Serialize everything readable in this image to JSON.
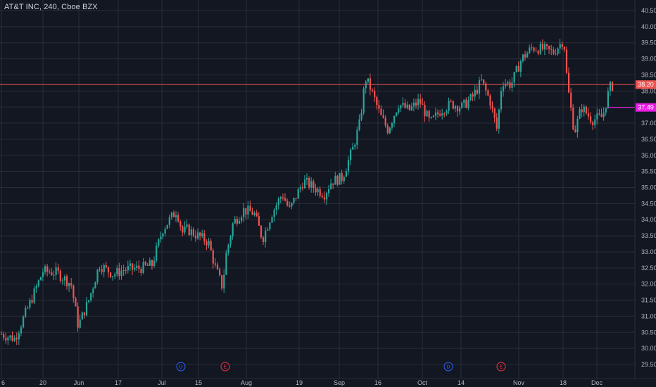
{
  "header": {
    "title": "AT&T INC, 240, Cboe BZX"
  },
  "colors": {
    "background": "#131722",
    "grid": "#2a2e39",
    "up": "#26a69a",
    "down": "#ef5350",
    "last_price_line": "#ef5350",
    "marker_price_line": "#e91ee3",
    "dividend": "#2962ff",
    "earnings": "#f23645"
  },
  "chart_data": {
    "type": "candlestick",
    "title": "AT&T INC, 240, Cboe BZX",
    "y_axis": {
      "min": 29.5,
      "max": 40.5,
      "ticks": [
        "29.50",
        "30.00",
        "30.50",
        "31.00",
        "31.50",
        "32.00",
        "32.50",
        "33.00",
        "33.50",
        "34.00",
        "34.50",
        "35.00",
        "35.50",
        "36.00",
        "36.50",
        "37.00",
        "37.50",
        "38.00",
        "38.50",
        "39.00",
        "39.50",
        "40.00",
        "40.50"
      ]
    },
    "x_axis": {
      "labels": [
        "6",
        "20",
        "Jun",
        "17",
        "Jul",
        "15",
        "Aug",
        "19",
        "Sep",
        "16",
        "Oct",
        "14",
        "Nov",
        "18",
        "Dec"
      ]
    },
    "price_labels": [
      {
        "value": 38.2,
        "label": "38.20",
        "kind": "last"
      },
      {
        "value": 37.49,
        "label": "37.49",
        "kind": "marker"
      }
    ],
    "events": [
      {
        "type": "dividend",
        "label": "D",
        "date": "Jul 9"
      },
      {
        "type": "earnings",
        "label": "E",
        "date": "Jul 24"
      },
      {
        "type": "dividend",
        "label": "D",
        "date": "Oct 8"
      },
      {
        "type": "earnings",
        "label": "E",
        "date": "Oct 23"
      }
    ],
    "anchors": [
      [
        0,
        30.45
      ],
      [
        20,
        30.3
      ],
      [
        45,
        31.6
      ],
      [
        60,
        32.4
      ],
      [
        80,
        32.35
      ],
      [
        100,
        32.0
      ],
      [
        110,
        30.7
      ],
      [
        125,
        31.5
      ],
      [
        140,
        32.6
      ],
      [
        160,
        32.3
      ],
      [
        175,
        32.45
      ],
      [
        200,
        32.5
      ],
      [
        215,
        32.6
      ],
      [
        230,
        33.7
      ],
      [
        250,
        34.3
      ],
      [
        258,
        33.6
      ],
      [
        265,
        33.7
      ],
      [
        280,
        33.5
      ],
      [
        295,
        33.3
      ],
      [
        305,
        32.5
      ],
      [
        315,
        31.9
      ],
      [
        320,
        32.9
      ],
      [
        330,
        33.9
      ],
      [
        345,
        34.3
      ],
      [
        360,
        34.2
      ],
      [
        372,
        33.4
      ],
      [
        385,
        34.2
      ],
      [
        400,
        34.8
      ],
      [
        410,
        34.3
      ],
      [
        430,
        35.2
      ],
      [
        445,
        35.0
      ],
      [
        460,
        34.8
      ],
      [
        470,
        35.2
      ],
      [
        485,
        35.3
      ],
      [
        500,
        36.2
      ],
      [
        510,
        37.0
      ],
      [
        518,
        38.4
      ],
      [
        525,
        38.1
      ],
      [
        540,
        37.2
      ],
      [
        550,
        36.8
      ],
      [
        565,
        37.6
      ],
      [
        580,
        37.4
      ],
      [
        595,
        37.7
      ],
      [
        610,
        37.0
      ],
      [
        625,
        37.4
      ],
      [
        640,
        37.6
      ],
      [
        655,
        37.5
      ],
      [
        670,
        37.8
      ],
      [
        683,
        38.3
      ],
      [
        695,
        37.7
      ],
      [
        705,
        36.8
      ],
      [
        712,
        38.3
      ],
      [
        725,
        38.2
      ],
      [
        740,
        39.0
      ],
      [
        755,
        39.35
      ],
      [
        770,
        39.3
      ],
      [
        785,
        39.2
      ],
      [
        800,
        39.6
      ],
      [
        805,
        38.2
      ],
      [
        815,
        36.7
      ],
      [
        825,
        37.5
      ],
      [
        840,
        37.1
      ],
      [
        855,
        37.2
      ],
      [
        865,
        38.1
      ],
      [
        872,
        38.2
      ]
    ]
  }
}
